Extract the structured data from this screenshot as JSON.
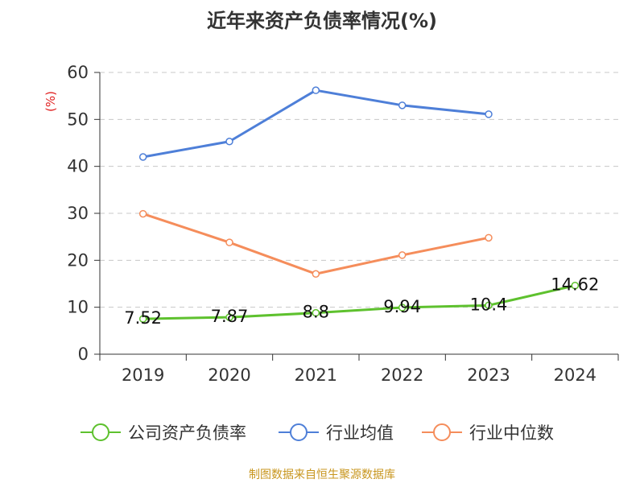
{
  "chart_data": {
    "type": "line",
    "title": "近年来资产负债率情况(%)",
    "ylabel": "(%)",
    "categories": [
      "2019",
      "2020",
      "2021",
      "2022",
      "2023",
      "2024"
    ],
    "ylim": [
      0,
      60
    ],
    "yticks": [
      "0",
      "10",
      "20",
      "30",
      "40",
      "50",
      "60"
    ],
    "grid": true,
    "legend_position": "bottom",
    "series": [
      {
        "name": "公司资产负债率",
        "color": "#5ec12e",
        "values": [
          7.52,
          7.87,
          8.8,
          9.94,
          10.4,
          14.62
        ],
        "labels": [
          "7.52",
          "7.87",
          "8.8",
          "9.94",
          "10.4",
          "14.62"
        ]
      },
      {
        "name": "行业均值",
        "color": "#4e7fd8",
        "values": [
          42.0,
          45.3,
          56.2,
          53.0,
          51.1,
          null
        ]
      },
      {
        "name": "行业中位数",
        "color": "#f58d5b",
        "values": [
          29.9,
          23.8,
          17.1,
          21.1,
          24.8,
          null
        ]
      }
    ]
  },
  "footer": "制图数据来自恒生聚源数据库"
}
